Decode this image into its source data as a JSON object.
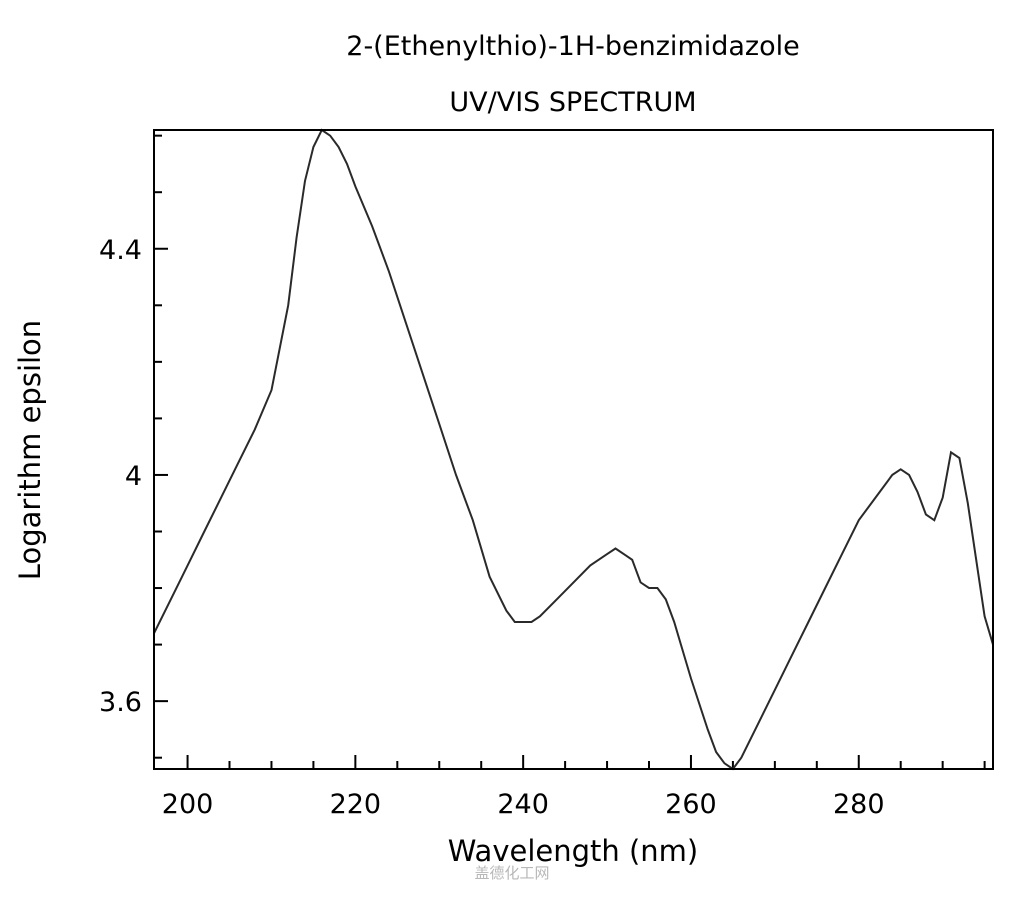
{
  "chart_data": {
    "type": "line",
    "title": "2-(Ethenylthio)-1H-benzimidazole",
    "subtitle": "UV/VIS SPECTRUM",
    "xlabel": "Wavelength (nm)",
    "ylabel": "Logarithm epsilon",
    "xlim": [
      196,
      296
    ],
    "ylim": [
      3.48,
      4.61
    ],
    "xticks": [
      200,
      220,
      240,
      260,
      280
    ],
    "yticks": [
      3.6,
      4,
      4.4
    ],
    "ytick_labels": [
      "3.6",
      "4",
      "4.4"
    ],
    "grid": false,
    "legend": "none",
    "series": [
      {
        "x": [
          196,
          198,
          200,
          202,
          204,
          206,
          208,
          210,
          212,
          213,
          214,
          215,
          216,
          217,
          218,
          219,
          220,
          222,
          224,
          226,
          228,
          230,
          232,
          234,
          236,
          238,
          239,
          240,
          241,
          242,
          244,
          246,
          248,
          250,
          251,
          252,
          253,
          254,
          255,
          256,
          257,
          258,
          260,
          262,
          263,
          264,
          265,
          266,
          268,
          270,
          272,
          274,
          276,
          278,
          280,
          282,
          284,
          285,
          286,
          287,
          288,
          289,
          290,
          291,
          292,
          293,
          294,
          295,
          296
        ],
        "y": [
          3.72,
          3.78,
          3.84,
          3.9,
          3.96,
          4.02,
          4.08,
          4.15,
          4.3,
          4.42,
          4.52,
          4.58,
          4.61,
          4.6,
          4.58,
          4.55,
          4.51,
          4.44,
          4.36,
          4.27,
          4.18,
          4.09,
          4.0,
          3.92,
          3.82,
          3.76,
          3.74,
          3.74,
          3.74,
          3.75,
          3.78,
          3.81,
          3.84,
          3.86,
          3.87,
          3.86,
          3.85,
          3.81,
          3.8,
          3.8,
          3.78,
          3.74,
          3.64,
          3.55,
          3.51,
          3.49,
          3.48,
          3.5,
          3.56,
          3.62,
          3.68,
          3.74,
          3.8,
          3.86,
          3.92,
          3.96,
          4.0,
          4.01,
          4.0,
          3.97,
          3.93,
          3.92,
          3.96,
          4.04,
          4.03,
          3.95,
          3.85,
          3.75,
          3.7
        ]
      }
    ]
  },
  "watermark": "盖德化工网"
}
